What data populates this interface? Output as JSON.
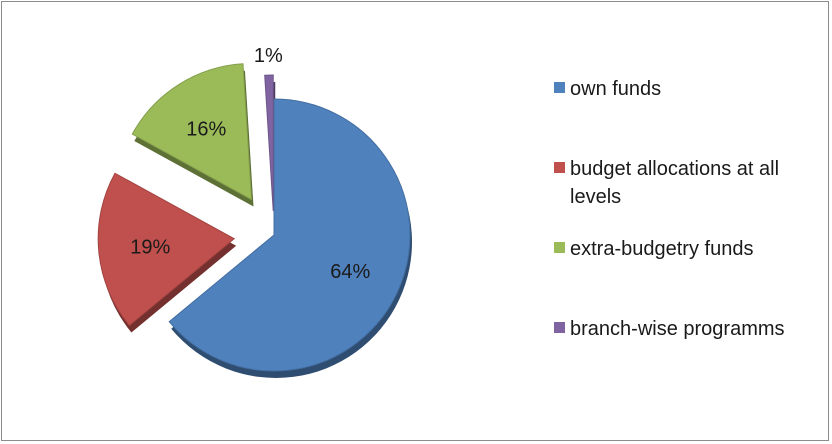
{
  "chart_data": {
    "type": "pie",
    "title": "",
    "categories": [
      "own funds",
      "budget allocations at all levels",
      "extra-budgetry  funds",
      "branch-wise programms"
    ],
    "values": [
      64,
      19,
      16,
      1
    ],
    "value_labels": [
      "64%",
      "19%",
      "16%",
      "1%"
    ],
    "colors": [
      "#4F81BD",
      "#C0504D",
      "#9BBB59",
      "#8064A2"
    ],
    "exploded": true,
    "legend_position": "right"
  },
  "legend": {
    "items": [
      {
        "label": "own funds"
      },
      {
        "label": "budget allocations at all levels"
      },
      {
        "label": "extra-budgetry  funds"
      },
      {
        "label": "branch-wise programms"
      }
    ]
  }
}
